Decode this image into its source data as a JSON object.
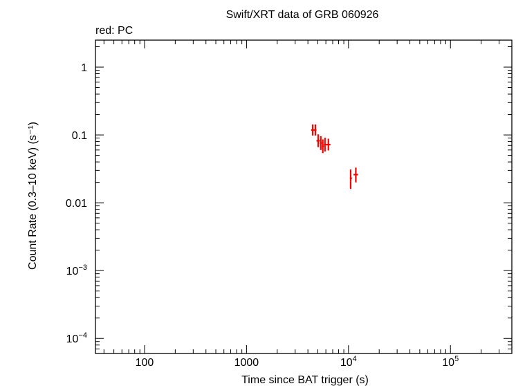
{
  "chart_data": {
    "type": "scatter",
    "title": "Swift/XRT data of GRB 060926",
    "subtitle": "red: PC",
    "xlabel": "Time since BAT trigger (s)",
    "ylabel": "Count Rate (0.3–10 keV) (s⁻¹)",
    "x_scale": "log",
    "y_scale": "log",
    "xlim": [
      33,
      400000
    ],
    "ylim": [
      6e-05,
      2.5
    ],
    "x_ticks": [
      {
        "value": 100,
        "label": "100",
        "sup": ""
      },
      {
        "value": 1000,
        "label": "1000",
        "sup": ""
      },
      {
        "value": 10000,
        "label": "10",
        "sup": "4"
      },
      {
        "value": 100000,
        "label": "10",
        "sup": "5"
      }
    ],
    "y_ticks": [
      {
        "value": 1,
        "label": "1",
        "sup": ""
      },
      {
        "value": 0.1,
        "label": "0.1",
        "sup": ""
      },
      {
        "value": 0.01,
        "label": "0.01",
        "sup": ""
      },
      {
        "value": 0.001,
        "label": "10",
        "sup": "−3"
      },
      {
        "value": 0.0001,
        "label": "10",
        "sup": "−4"
      }
    ],
    "grid": false,
    "series": [
      {
        "name": "PC",
        "color": "#ff0000",
        "points": [
          {
            "x": 4450,
            "xerr": [
              4300,
              4600
            ],
            "y": 0.118,
            "yerr": [
              0.098,
              0.143
            ]
          },
          {
            "x": 4730,
            "xerr": [
              4600,
              4850
            ],
            "y": 0.118,
            "yerr": [
              0.098,
              0.143
            ]
          },
          {
            "x": 5040,
            "xerr": [
              4850,
              5230
            ],
            "y": 0.082,
            "yerr": [
              0.066,
              0.102
            ]
          },
          {
            "x": 5350,
            "xerr": [
              5230,
              5480
            ],
            "y": 0.076,
            "yerr": [
              0.06,
              0.096
            ]
          },
          {
            "x": 5600,
            "xerr": [
              5480,
              5730
            ],
            "y": 0.068,
            "yerr": [
              0.054,
              0.086
            ]
          },
          {
            "x": 5880,
            "xerr": [
              5730,
              6050
            ],
            "y": 0.072,
            "yerr": [
              0.057,
              0.091
            ]
          },
          {
            "x": 6350,
            "xerr": [
              6050,
              6650
            ],
            "y": 0.072,
            "yerr": [
              0.059,
              0.088
            ]
          },
          {
            "x": 10500,
            "xerr": [
              10300,
              10800
            ],
            "y": 0.023,
            "yerr": [
              0.016,
              0.031
            ]
          },
          {
            "x": 11800,
            "xerr": [
              11200,
              12400
            ],
            "y": 0.026,
            "yerr": [
              0.02,
              0.033
            ]
          }
        ]
      }
    ]
  }
}
